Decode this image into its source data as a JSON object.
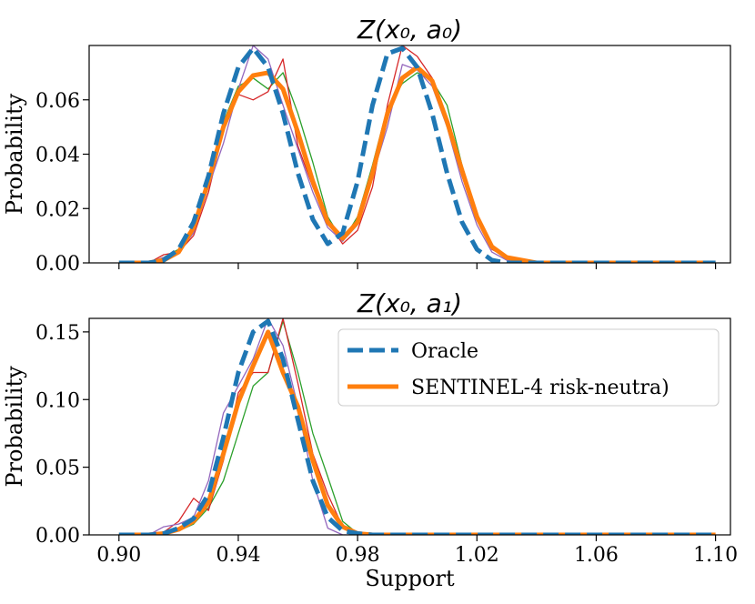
{
  "chart_data": [
    {
      "type": "line",
      "title": "Z(x₀, a₀)",
      "xlabel": "",
      "ylabel": "Probability",
      "xlim": [
        0.89,
        1.105
      ],
      "ylim": [
        0,
        0.08
      ],
      "yticks": [
        0.0,
        0.02,
        0.04,
        0.06
      ],
      "ytick_labels": [
        "0.00",
        "0.02",
        "0.04",
        "0.06"
      ],
      "xticks": [
        0.9,
        0.94,
        0.98,
        1.02,
        1.06,
        1.1
      ],
      "show_x_labels": false,
      "x": [
        0.9,
        0.905,
        0.91,
        0.915,
        0.92,
        0.925,
        0.93,
        0.935,
        0.94,
        0.945,
        0.95,
        0.955,
        0.96,
        0.965,
        0.97,
        0.975,
        0.98,
        0.985,
        0.99,
        0.995,
        1.0,
        1.005,
        1.01,
        1.015,
        1.02,
        1.025,
        1.03,
        1.035,
        1.04,
        1.05,
        1.06,
        1.07,
        1.08,
        1.09,
        1.1
      ],
      "series": [
        {
          "name": "Oracle",
          "color": "#1f77b4",
          "style": "dashed",
          "values": [
            0,
            0,
            0,
            0.001,
            0.005,
            0.015,
            0.032,
            0.055,
            0.072,
            0.079,
            0.072,
            0.055,
            0.033,
            0.016,
            0.007,
            0.011,
            0.03,
            0.058,
            0.077,
            0.079,
            0.072,
            0.055,
            0.033,
            0.015,
            0.005,
            0.001,
            0,
            0,
            0,
            0,
            0,
            0,
            0,
            0,
            0
          ]
        },
        {
          "name": "SENTINEL-4 risk-neutra)",
          "color": "#ff7f0e",
          "style": "solid-thick",
          "values": [
            0,
            0,
            0,
            0.001,
            0.004,
            0.013,
            0.03,
            0.05,
            0.063,
            0.069,
            0.07,
            0.064,
            0.048,
            0.03,
            0.015,
            0.009,
            0.015,
            0.033,
            0.055,
            0.068,
            0.072,
            0.067,
            0.052,
            0.034,
            0.017,
            0.006,
            0.002,
            0.001,
            0,
            0,
            0,
            0,
            0,
            0,
            0
          ]
        },
        {
          "name": "",
          "color": "#2ca02c",
          "style": "thin",
          "values": [
            0,
            0,
            0,
            0.002,
            0.005,
            0.014,
            0.031,
            0.052,
            0.065,
            0.068,
            0.064,
            0.07,
            0.055,
            0.037,
            0.017,
            0.008,
            0.017,
            0.036,
            0.057,
            0.066,
            0.07,
            0.067,
            0.058,
            0.036,
            0.018,
            0.006,
            0.002,
            0,
            0,
            0,
            0,
            0,
            0,
            0,
            0
          ]
        },
        {
          "name": "",
          "color": "#d62728",
          "style": "thin",
          "values": [
            0,
            0,
            0,
            0.003,
            0.004,
            0.01,
            0.026,
            0.049,
            0.062,
            0.06,
            0.063,
            0.075,
            0.043,
            0.028,
            0.015,
            0.007,
            0.012,
            0.028,
            0.058,
            0.08,
            0.076,
            0.068,
            0.052,
            0.032,
            0.016,
            0.005,
            0.002,
            0,
            0,
            0,
            0,
            0,
            0,
            0,
            0
          ]
        },
        {
          "name": "",
          "color": "#9467bd",
          "style": "thin",
          "values": [
            0,
            0,
            0,
            0.002,
            0.004,
            0.011,
            0.028,
            0.044,
            0.064,
            0.08,
            0.075,
            0.058,
            0.042,
            0.026,
            0.013,
            0.008,
            0.014,
            0.032,
            0.05,
            0.073,
            0.071,
            0.065,
            0.05,
            0.03,
            0.014,
            0.004,
            0.001,
            0,
            0,
            0,
            0,
            0,
            0,
            0,
            0
          ]
        }
      ]
    },
    {
      "type": "line",
      "title": "Z(x₀, a₁)",
      "xlabel": "Support",
      "ylabel": "Probability",
      "xlim": [
        0.89,
        1.105
      ],
      "ylim": [
        0,
        0.16
      ],
      "yticks": [
        0.0,
        0.05,
        0.1,
        0.15
      ],
      "ytick_labels": [
        "0.00",
        "0.05",
        "0.10",
        "0.15"
      ],
      "xticks": [
        0.9,
        0.94,
        0.98,
        1.02,
        1.06,
        1.1
      ],
      "xtick_labels": [
        "0.90",
        "0.94",
        "0.98",
        "1.02",
        "1.06",
        "1.10"
      ],
      "show_x_labels": true,
      "legend": "top-right",
      "x": [
        0.9,
        0.905,
        0.91,
        0.915,
        0.92,
        0.925,
        0.93,
        0.935,
        0.94,
        0.945,
        0.95,
        0.955,
        0.96,
        0.965,
        0.97,
        0.975,
        0.98,
        0.985,
        0.99,
        1.0,
        1.02,
        1.04,
        1.06,
        1.08,
        1.09,
        1.1
      ],
      "series": [
        {
          "name": "Oracle",
          "color": "#1f77b4",
          "style": "dashed",
          "values": [
            0,
            0,
            0,
            0.001,
            0.005,
            0.012,
            0.03,
            0.072,
            0.12,
            0.15,
            0.158,
            0.13,
            0.085,
            0.04,
            0.013,
            0.003,
            0.001,
            0,
            0,
            0,
            0,
            0,
            0,
            0,
            0,
            0
          ]
        },
        {
          "name": "SENTINEL-4 risk-neutra)",
          "color": "#ff7f0e",
          "style": "solid-thick",
          "values": [
            0,
            0,
            0,
            0.001,
            0.004,
            0.01,
            0.024,
            0.06,
            0.098,
            0.125,
            0.15,
            0.12,
            0.095,
            0.055,
            0.022,
            0.006,
            0.001,
            0,
            0,
            0,
            0,
            0,
            0,
            0,
            0,
            0
          ]
        },
        {
          "name": "",
          "color": "#2ca02c",
          "style": "thin",
          "values": [
            0,
            0,
            0,
            0.001,
            0.003,
            0.008,
            0.02,
            0.04,
            0.075,
            0.11,
            0.12,
            0.158,
            0.12,
            0.075,
            0.043,
            0.01,
            0.001,
            0,
            0,
            0,
            0,
            0,
            0,
            0.001,
            0,
            0
          ]
        },
        {
          "name": "",
          "color": "#d62728",
          "style": "thin",
          "values": [
            0,
            0,
            0,
            0.002,
            0.01,
            0.027,
            0.018,
            0.055,
            0.105,
            0.12,
            0.12,
            0.16,
            0.112,
            0.06,
            0.03,
            0.006,
            0.001,
            0,
            0,
            0,
            0,
            0,
            0,
            0,
            0,
            0
          ]
        },
        {
          "name": "",
          "color": "#9467bd",
          "style": "thin",
          "values": [
            0,
            0,
            0,
            0.006,
            0.008,
            0.013,
            0.04,
            0.09,
            0.11,
            0.13,
            0.16,
            0.14,
            0.095,
            0.04,
            0.005,
            0,
            0,
            0,
            0,
            0,
            0,
            0,
            0,
            0,
            0,
            0
          ]
        }
      ]
    }
  ]
}
